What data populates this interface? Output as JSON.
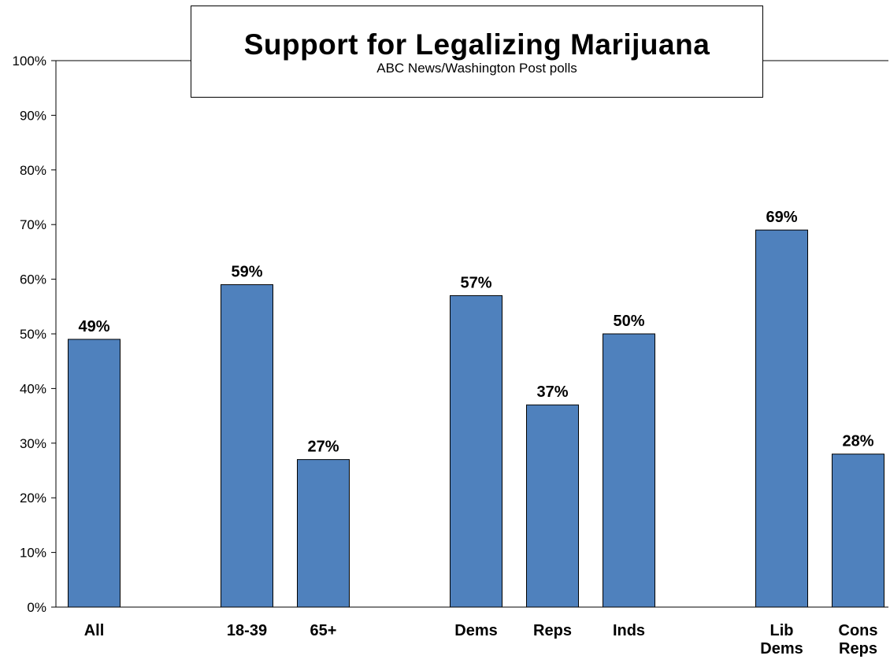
{
  "chart_data": {
    "type": "bar",
    "title": "Support for Legalizing Marijuana",
    "subtitle": "ABC News/Washington  Post polls",
    "xlabel": "",
    "ylabel": "",
    "ylim": [
      0,
      100
    ],
    "yticks": [
      "0%",
      "10%",
      "20%",
      "30%",
      "40%",
      "50%",
      "60%",
      "70%",
      "80%",
      "90%",
      "100%"
    ],
    "grid": false,
    "legend": "none",
    "bar_color": "#4f81bd",
    "categories": [
      {
        "label": [
          "All"
        ],
        "value": 49,
        "label_text": "49%",
        "slot": 0.5
      },
      {
        "label": [
          "18-39"
        ],
        "value": 59,
        "label_text": "59%",
        "slot": 2.5
      },
      {
        "label": [
          "65+"
        ],
        "value": 27,
        "label_text": "27%",
        "slot": 3.5
      },
      {
        "label": [
          "Dems"
        ],
        "value": 57,
        "label_text": "57%",
        "slot": 5.5
      },
      {
        "label": [
          "Reps"
        ],
        "value": 37,
        "label_text": "37%",
        "slot": 6.5
      },
      {
        "label": [
          "Inds"
        ],
        "value": 50,
        "label_text": "50%",
        "slot": 7.5
      },
      {
        "label": [
          "Lib",
          "Dems"
        ],
        "value": 69,
        "label_text": "69%",
        "slot": 9.5
      },
      {
        "label": [
          "Cons",
          "Reps"
        ],
        "value": 28,
        "label_text": "28%",
        "slot": 10.5
      }
    ]
  }
}
